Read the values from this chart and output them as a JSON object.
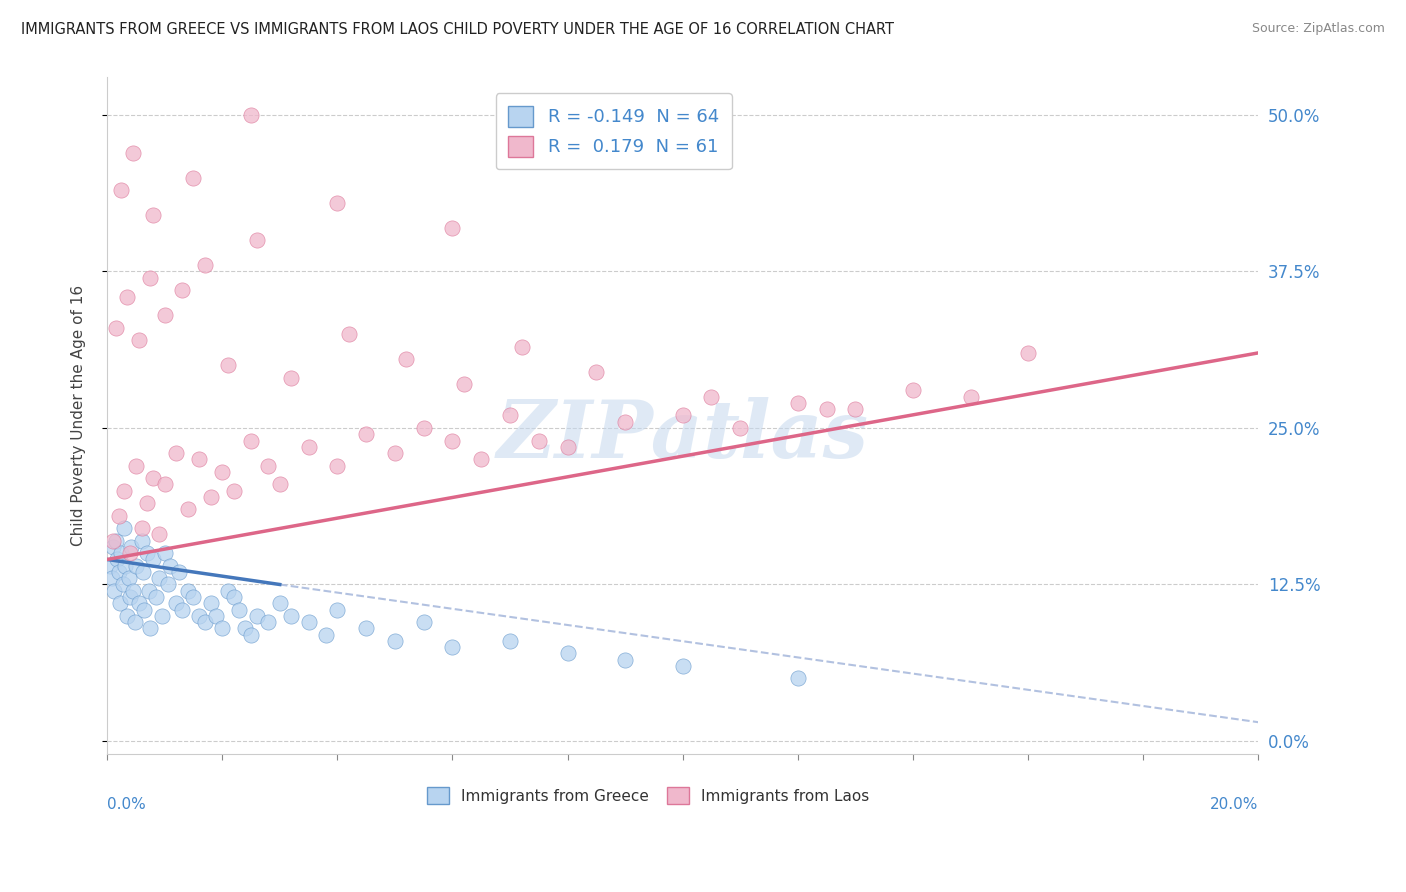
{
  "title": "IMMIGRANTS FROM GREECE VS IMMIGRANTS FROM LAOS CHILD POVERTY UNDER THE AGE OF 16 CORRELATION CHART",
  "source": "Source: ZipAtlas.com",
  "ylabel": "Child Poverty Under the Age of 16",
  "yticks": [
    "0.0%",
    "12.5%",
    "25.0%",
    "37.5%",
    "50.0%"
  ],
  "ytick_vals": [
    0.0,
    12.5,
    25.0,
    37.5,
    50.0
  ],
  "xlim": [
    0.0,
    20.0
  ],
  "ylim": [
    -1.0,
    53.0
  ],
  "watermark": "ZIPatlas",
  "legend_r_greece": "-0.149",
  "legend_n_greece": "64",
  "legend_r_laos": "0.179",
  "legend_n_laos": "61",
  "color_greece_fill": "#b8d4f0",
  "color_laos_fill": "#f0b8cc",
  "color_greece_edge": "#6699cc",
  "color_laos_edge": "#dd7799",
  "color_greece_line": "#4477bb",
  "color_laos_line": "#dd6688",
  "color_dashed": "#aabbdd",
  "greece_x": [
    0.05,
    0.08,
    0.1,
    0.12,
    0.15,
    0.18,
    0.2,
    0.22,
    0.25,
    0.28,
    0.3,
    0.32,
    0.35,
    0.38,
    0.4,
    0.42,
    0.45,
    0.48,
    0.5,
    0.55,
    0.6,
    0.62,
    0.65,
    0.7,
    0.72,
    0.75,
    0.8,
    0.85,
    0.9,
    0.95,
    1.0,
    1.05,
    1.1,
    1.2,
    1.25,
    1.3,
    1.4,
    1.5,
    1.6,
    1.7,
    1.8,
    1.9,
    2.0,
    2.1,
    2.2,
    2.3,
    2.4,
    2.5,
    2.6,
    2.8,
    3.0,
    3.2,
    3.5,
    3.8,
    4.0,
    4.5,
    5.0,
    5.5,
    6.0,
    7.0,
    8.0,
    9.0,
    10.0,
    12.0
  ],
  "greece_y": [
    14.0,
    13.0,
    15.5,
    12.0,
    16.0,
    14.5,
    13.5,
    11.0,
    15.0,
    12.5,
    17.0,
    14.0,
    10.0,
    13.0,
    11.5,
    15.5,
    12.0,
    9.5,
    14.0,
    11.0,
    16.0,
    13.5,
    10.5,
    15.0,
    12.0,
    9.0,
    14.5,
    11.5,
    13.0,
    10.0,
    15.0,
    12.5,
    14.0,
    11.0,
    13.5,
    10.5,
    12.0,
    11.5,
    10.0,
    9.5,
    11.0,
    10.0,
    9.0,
    12.0,
    11.5,
    10.5,
    9.0,
    8.5,
    10.0,
    9.5,
    11.0,
    10.0,
    9.5,
    8.5,
    10.5,
    9.0,
    8.0,
    9.5,
    7.5,
    8.0,
    7.0,
    6.5,
    6.0,
    5.0
  ],
  "laos_x": [
    0.1,
    0.2,
    0.3,
    0.4,
    0.5,
    0.6,
    0.7,
    0.8,
    0.9,
    1.0,
    1.2,
    1.4,
    1.6,
    1.8,
    2.0,
    2.2,
    2.5,
    2.8,
    3.0,
    3.5,
    4.0,
    4.5,
    5.0,
    5.5,
    6.0,
    6.5,
    7.0,
    7.5,
    8.0,
    9.0,
    10.0,
    11.0,
    12.0,
    13.0,
    14.0,
    15.0,
    16.0,
    0.15,
    0.35,
    0.55,
    0.75,
    1.0,
    1.3,
    1.7,
    2.1,
    2.6,
    3.2,
    4.2,
    5.2,
    6.2,
    7.2,
    8.5,
    10.5,
    12.5,
    0.25,
    0.45,
    0.8,
    1.5,
    2.5,
    4.0,
    6.0
  ],
  "laos_y": [
    16.0,
    18.0,
    20.0,
    15.0,
    22.0,
    17.0,
    19.0,
    21.0,
    16.5,
    20.5,
    23.0,
    18.5,
    22.5,
    19.5,
    21.5,
    20.0,
    24.0,
    22.0,
    20.5,
    23.5,
    22.0,
    24.5,
    23.0,
    25.0,
    24.0,
    22.5,
    26.0,
    24.0,
    23.5,
    25.5,
    26.0,
    25.0,
    27.0,
    26.5,
    28.0,
    27.5,
    31.0,
    33.0,
    35.5,
    32.0,
    37.0,
    34.0,
    36.0,
    38.0,
    30.0,
    40.0,
    29.0,
    32.5,
    30.5,
    28.5,
    31.5,
    29.5,
    27.5,
    26.5,
    44.0,
    47.0,
    42.0,
    45.0,
    50.0,
    43.0,
    41.0
  ],
  "greece_line_x0": 0.0,
  "greece_line_y0": 14.5,
  "greece_line_x1": 3.0,
  "greece_line_y1": 12.5,
  "greece_dashed_x0": 3.0,
  "greece_dashed_y0": 12.5,
  "greece_dashed_x1": 20.0,
  "greece_dashed_y1": 1.5,
  "laos_line_x0": 0.0,
  "laos_line_y0": 14.5,
  "laos_line_x1": 20.0,
  "laos_line_y1": 31.0
}
